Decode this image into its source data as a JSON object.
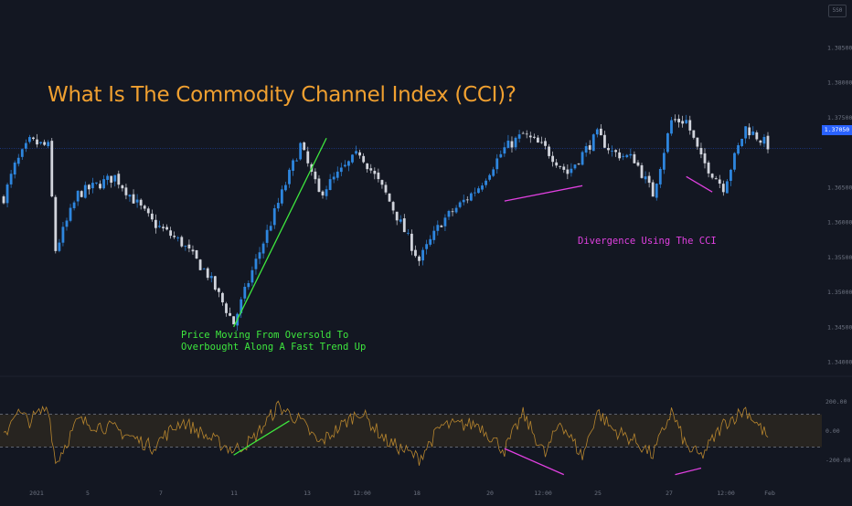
{
  "title": "What Is The Commodity Channel Index (CCI)?",
  "annotations": {
    "trend_line1": "Price Moving From Oversold To",
    "trend_line2": "Overbought Along A Fast Trend Up",
    "divergence": "Divergence Using The CCI"
  },
  "badge": "5S0",
  "current_price_label": "1.37050",
  "colors": {
    "background": "#131722",
    "candle_up": "#2e86de",
    "candle_down": "#d1d4dc",
    "cci_line": "#b8862e",
    "cci_band": "#2a2620",
    "title": "#f0a030",
    "trend_line": "#3ee83e",
    "divergence_line": "#e040e0",
    "price_line": "#2962ff"
  },
  "chart_data": [
    {
      "type": "candlestick",
      "name": "price",
      "y_axis_labels": [
        "1.38500",
        "1.38000",
        "1.37500",
        "1.37050",
        "1.36500",
        "1.36000",
        "1.35500",
        "1.35000",
        "1.34500",
        "1.34000"
      ],
      "y_range": [
        1.3395,
        1.3885
      ],
      "x_axis_labels": [
        "2021",
        "5",
        "7",
        "11",
        "13",
        "12:00",
        "18",
        "20",
        "12:00",
        "25",
        "27",
        "12:00",
        "Feb"
      ],
      "anchors": [
        [
          0,
          1.3635
        ],
        [
          3,
          1.368
        ],
        [
          7,
          1.3715
        ],
        [
          12,
          1.3708
        ],
        [
          14,
          1.356
        ],
        [
          20,
          1.364
        ],
        [
          30,
          1.3665
        ],
        [
          40,
          1.36
        ],
        [
          48,
          1.357
        ],
        [
          55,
          1.3525
        ],
        [
          62,
          1.3455
        ],
        [
          67,
          1.353
        ],
        [
          80,
          1.371
        ],
        [
          85,
          1.364
        ],
        [
          96,
          1.37
        ],
        [
          103,
          1.364
        ],
        [
          112,
          1.3545
        ],
        [
          118,
          1.36
        ],
        [
          128,
          1.365
        ],
        [
          135,
          1.3705
        ],
        [
          140,
          1.3725
        ],
        [
          146,
          1.3705
        ],
        [
          152,
          1.367
        ],
        [
          160,
          1.3725
        ],
        [
          164,
          1.37
        ],
        [
          170,
          1.369
        ],
        [
          175,
          1.364
        ],
        [
          180,
          1.3745
        ],
        [
          184,
          1.3745
        ],
        [
          188,
          1.369
        ],
        [
          194,
          1.365
        ],
        [
          200,
          1.3735
        ],
        [
          206,
          1.371
        ]
      ],
      "current_price": 1.3705,
      "annotations": [
        {
          "kind": "trend_line",
          "from": [
            62,
            1.345
          ],
          "to": [
            87,
            1.372
          ]
        },
        {
          "kind": "divergence_line",
          "from": [
            135,
            1.363
          ],
          "to": [
            156,
            1.3652
          ]
        },
        {
          "kind": "divergence_line",
          "from": [
            184,
            1.3665
          ],
          "to": [
            191,
            1.3643
          ]
        }
      ]
    },
    {
      "type": "line",
      "name": "CCI",
      "y_axis_labels": [
        "200.00",
        "0.00",
        "-200.00"
      ],
      "y_range": [
        -300,
        300
      ],
      "band": [
        -100,
        100
      ],
      "anchors": [
        [
          0,
          -50
        ],
        [
          3,
          120
        ],
        [
          7,
          60
        ],
        [
          12,
          150
        ],
        [
          14,
          -200
        ],
        [
          20,
          60
        ],
        [
          30,
          10
        ],
        [
          40,
          -100
        ],
        [
          48,
          60
        ],
        [
          55,
          -40
        ],
        [
          62,
          -120
        ],
        [
          67,
          -60
        ],
        [
          74,
          150
        ],
        [
          80,
          60
        ],
        [
          85,
          -80
        ],
        [
          96,
          120
        ],
        [
          103,
          -60
        ],
        [
          112,
          -170
        ],
        [
          118,
          30
        ],
        [
          128,
          40
        ],
        [
          135,
          -120
        ],
        [
          140,
          100
        ],
        [
          146,
          -150
        ],
        [
          150,
          60
        ],
        [
          156,
          -160
        ],
        [
          160,
          120
        ],
        [
          164,
          10
        ],
        [
          170,
          -60
        ],
        [
          175,
          -150
        ],
        [
          180,
          120
        ],
        [
          184,
          -100
        ],
        [
          188,
          -160
        ],
        [
          194,
          40
        ],
        [
          200,
          130
        ],
        [
          206,
          -40
        ]
      ],
      "annotations": [
        {
          "kind": "trend_line",
          "from": [
            62,
            -150
          ],
          "to": [
            77,
            60
          ]
        },
        {
          "kind": "divergence_line",
          "from": [
            135,
            -110
          ],
          "to": [
            151,
            -270
          ]
        },
        {
          "kind": "divergence_line",
          "from": [
            181,
            -270
          ],
          "to": [
            188,
            -230
          ]
        }
      ]
    }
  ]
}
